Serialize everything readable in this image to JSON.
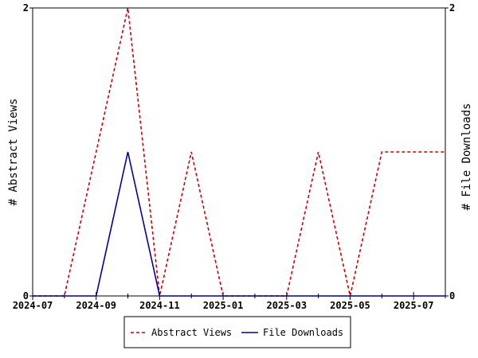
{
  "chart_data": {
    "type": "line",
    "x": [
      "2024-07",
      "2024-08",
      "2024-09",
      "2024-10",
      "2024-11",
      "2024-12",
      "2025-01",
      "2025-02",
      "2025-03",
      "2025-04",
      "2025-05",
      "2025-06",
      "2025-07",
      "2025-08"
    ],
    "x_tick_labels": [
      "2024-07",
      "2024-09",
      "2024-11",
      "2025-01",
      "2025-03",
      "2025-05",
      "2025-07"
    ],
    "series": [
      {
        "name": "Abstract Views",
        "axis": "left",
        "color": "#cc0000",
        "dash": "dashed",
        "values": [
          0,
          0,
          1,
          2,
          0,
          1,
          0,
          0,
          0,
          1,
          0,
          1,
          1,
          1
        ]
      },
      {
        "name": "File Downloads",
        "axis": "right",
        "color": "#000099",
        "dash": "solid",
        "values": [
          0,
          0,
          0,
          1,
          0,
          0,
          0,
          0,
          0,
          0,
          0,
          0,
          0,
          0
        ]
      }
    ],
    "ylabel_left": "# Abstract Views",
    "ylabel_right": "# File Downloads",
    "ylim_left": [
      0,
      2
    ],
    "ylim_right": [
      0,
      2
    ],
    "y_ticks_left": [
      "0",
      "2"
    ],
    "y_ticks_right": [
      "0",
      "2"
    ],
    "grid": false,
    "legend_position": "bottom"
  }
}
